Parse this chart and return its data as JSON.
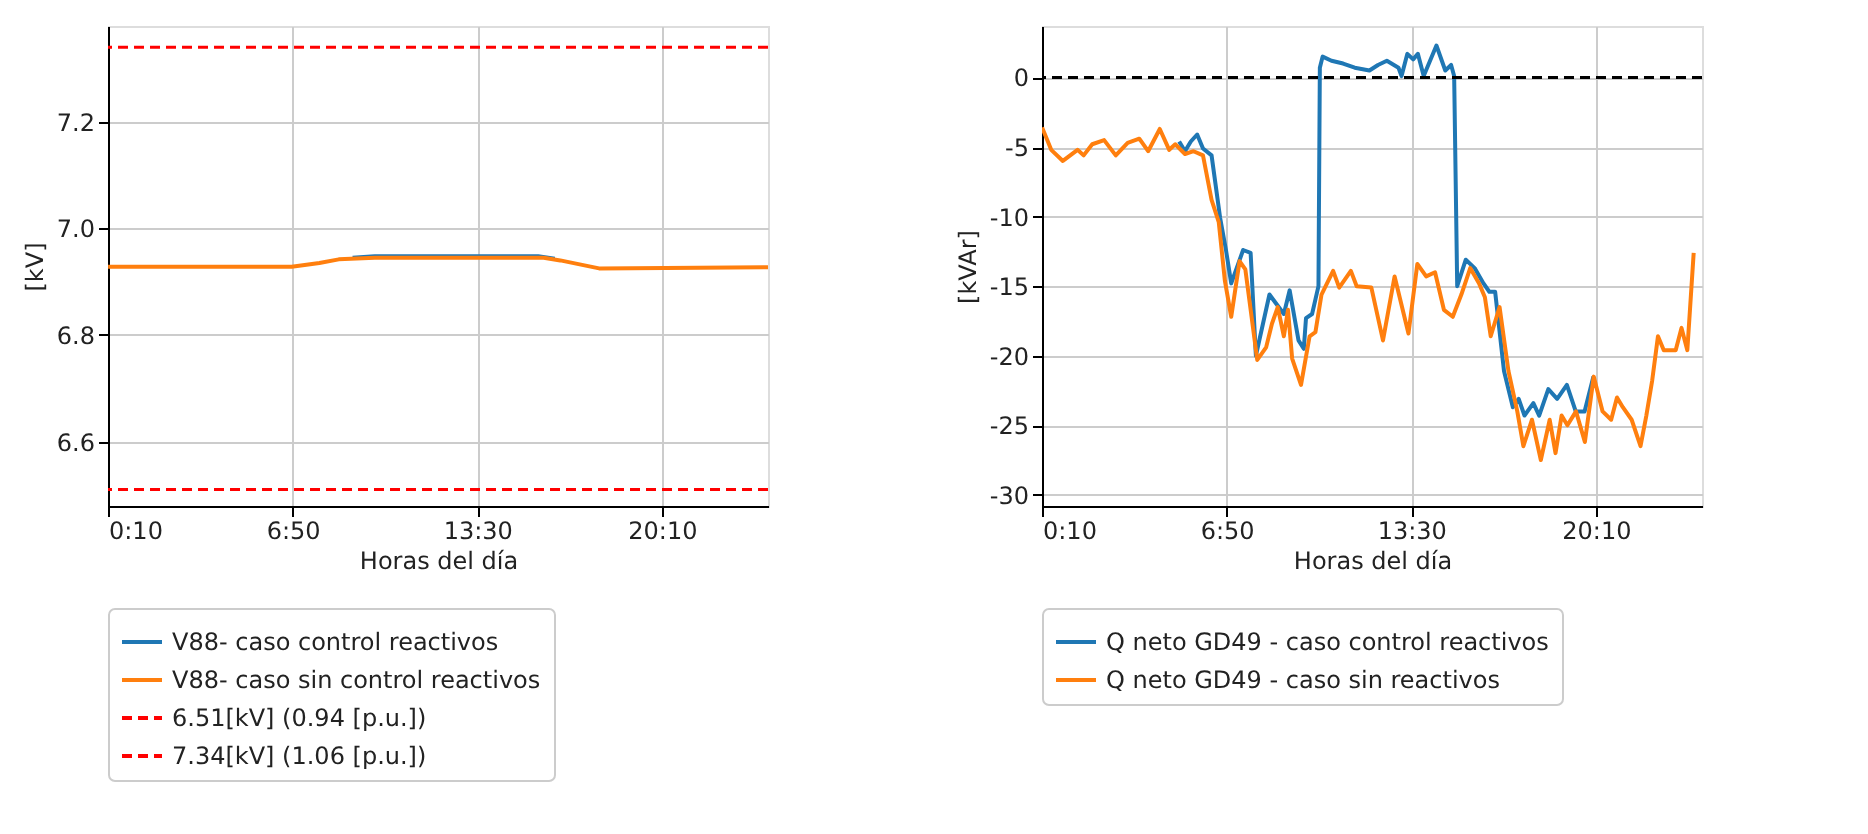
{
  "chart_data": [
    {
      "type": "line",
      "xlabel": "Horas del día",
      "ylabel": "[kV]",
      "xlim": [
        0.1667,
        24.0
      ],
      "ylim": [
        6.479,
        7.38
      ],
      "xticks": [
        {
          "value": 0.1667,
          "label": "0:10"
        },
        {
          "value": 6.8333,
          "label": "6:50"
        },
        {
          "value": 13.5,
          "label": "13:30"
        },
        {
          "value": 20.1667,
          "label": "20:10"
        }
      ],
      "yticks": [
        6.6,
        6.8,
        {
          "value": 7.0,
          "label": "7.0"
        },
        7.2
      ],
      "grid": true,
      "legend": "bottom",
      "line_style": "solid",
      "series": [
        {
          "name": "V88- caso control reactivos",
          "color": "#1f77b4",
          "x": [
            9.0,
            9.8,
            15.7,
            16.3
          ],
          "values": [
            6.945,
            6.948,
            6.948,
            6.943
          ]
        },
        {
          "name": "V88- caso sin control reactivos",
          "color": "#ff7f0e",
          "x": [
            0.17,
            6.8,
            7.8,
            8.5,
            9.8,
            15.9,
            16.5,
            17.9,
            24.0
          ],
          "values": [
            6.928,
            6.928,
            6.935,
            6.942,
            6.945,
            6.945,
            6.94,
            6.925,
            6.927
          ]
        }
      ],
      "ref_lines": [
        {
          "axis": "y",
          "value": 6.51,
          "label": "6.51[kV] (0.94 [p.u.])",
          "color": "#ff0000",
          "line_style": "dashed"
        },
        {
          "axis": "y",
          "value": 7.34,
          "label": "7.34[kV] (1.06 [p.u.])",
          "color": "#ff0000",
          "line_style": "dashed"
        }
      ]
    },
    {
      "type": "line",
      "xlabel": "Horas del día",
      "ylabel": "[kVAr]",
      "xlim": [
        0.1667,
        24.0
      ],
      "ylim": [
        -30.8,
        3.7
      ],
      "xticks": [
        {
          "value": 0.1667,
          "label": "0:10"
        },
        {
          "value": 6.8333,
          "label": "6:50"
        },
        {
          "value": 13.5,
          "label": "13:30"
        },
        {
          "value": 20.1667,
          "label": "20:10"
        }
      ],
      "yticks": [
        -30,
        -25,
        -20,
        -15,
        -10,
        -5,
        0
      ],
      "grid": true,
      "legend": "bottom",
      "line_style": "solid",
      "series": [
        {
          "name": "Q neto GD49 - caso control reactivos",
          "color": "#1f77b4",
          "x": [
            5.12,
            5.33,
            5.54,
            5.77,
            5.98,
            6.29,
            6.6,
            6.81,
            7.0,
            7.43,
            7.7,
            7.89,
            8.38,
            8.9,
            9.11,
            9.43,
            9.62,
            9.7,
            9.92,
            10.15,
            10.2,
            10.3,
            10.62,
            11.04,
            11.46,
            11.99,
            12.3,
            12.62,
            13.04,
            13.15,
            13.36,
            13.57,
            13.74,
            13.95,
            14.41,
            14.73,
            14.94,
            15.05,
            15.16,
            15.47,
            15.79,
            16.11,
            16.32,
            16.53,
            16.85,
            17.17,
            17.38,
            17.59,
            17.91,
            18.12,
            18.45,
            18.77,
            19.12,
            19.44,
            19.76,
            20.08
          ],
          "values": [
            -4.6,
            -5.3,
            -4.6,
            -4.1,
            -5.1,
            -5.6,
            -10.1,
            -12.4,
            -14.8,
            -12.4,
            -12.6,
            -20.0,
            -15.6,
            -17.0,
            -15.3,
            -18.9,
            -19.5,
            -17.3,
            -17.0,
            -15.0,
            0.7,
            1.5,
            1.2,
            1.0,
            0.7,
            0.5,
            0.9,
            1.2,
            0.7,
            0.1,
            1.7,
            1.3,
            1.7,
            0.1,
            2.3,
            0.5,
            0.9,
            0.1,
            -15.0,
            -13.1,
            -13.7,
            -14.8,
            -15.4,
            -15.4,
            -21.1,
            -23.7,
            -23.1,
            -24.3,
            -23.4,
            -24.3,
            -22.4,
            -23.1,
            -22.1,
            -24.0,
            -24.0,
            -21.5
          ]
        },
        {
          "name": "Q neto GD49 - caso sin reactivos",
          "color": "#ff7f0e",
          "x": [
            0.17,
            0.5,
            0.92,
            1.45,
            1.67,
            1.98,
            2.41,
            2.83,
            3.26,
            3.68,
            4.0,
            4.42,
            4.76,
            4.98,
            5.33,
            5.64,
            5.98,
            6.29,
            6.55,
            6.77,
            7.0,
            7.3,
            7.51,
            7.94,
            8.26,
            8.47,
            8.68,
            8.9,
            9.05,
            9.2,
            9.52,
            9.83,
            10.04,
            10.26,
            10.68,
            10.9,
            11.32,
            11.53,
            12.06,
            12.48,
            12.9,
            13.4,
            13.72,
            14.04,
            14.36,
            14.68,
            15.0,
            15.31,
            15.63,
            15.95,
            16.16,
            16.37,
            16.69,
            17.01,
            17.33,
            17.55,
            17.86,
            18.18,
            18.5,
            18.71,
            18.93,
            19.14,
            19.45,
            19.77,
            20.09,
            20.41,
            20.72,
            20.93,
            21.14,
            21.46,
            21.78,
            21.99,
            22.2,
            22.41,
            22.62,
            22.84,
            23.05,
            23.26,
            23.47,
            23.7
          ],
          "values": [
            -3.6,
            -5.2,
            -6.0,
            -5.2,
            -5.6,
            -4.8,
            -4.5,
            -5.6,
            -4.7,
            -4.4,
            -5.3,
            -3.7,
            -5.2,
            -4.8,
            -5.5,
            -5.3,
            -5.6,
            -8.8,
            -10.4,
            -14.6,
            -17.2,
            -13.2,
            -13.8,
            -20.3,
            -19.4,
            -17.7,
            -16.5,
            -18.6,
            -16.7,
            -20.2,
            -22.1,
            -18.6,
            -18.3,
            -15.6,
            -13.9,
            -15.1,
            -13.9,
            -15.0,
            -15.1,
            -18.9,
            -14.3,
            -18.4,
            -13.4,
            -14.3,
            -14.0,
            -16.7,
            -17.2,
            -15.6,
            -13.7,
            -14.8,
            -15.8,
            -18.6,
            -16.5,
            -21.1,
            -24.0,
            -26.5,
            -24.6,
            -27.5,
            -24.6,
            -27.0,
            -24.3,
            -25.0,
            -24.0,
            -26.2,
            -21.5,
            -24.0,
            -24.6,
            -23.0,
            -23.7,
            -24.6,
            -26.5,
            -24.3,
            -21.8,
            -18.6,
            -19.6,
            -19.6,
            -19.6,
            -18.0,
            -19.6,
            -12.6
          ]
        }
      ],
      "ref_lines": [
        {
          "axis": "y",
          "value": 0,
          "color": "#000000",
          "line_style": "dashed"
        }
      ]
    }
  ]
}
